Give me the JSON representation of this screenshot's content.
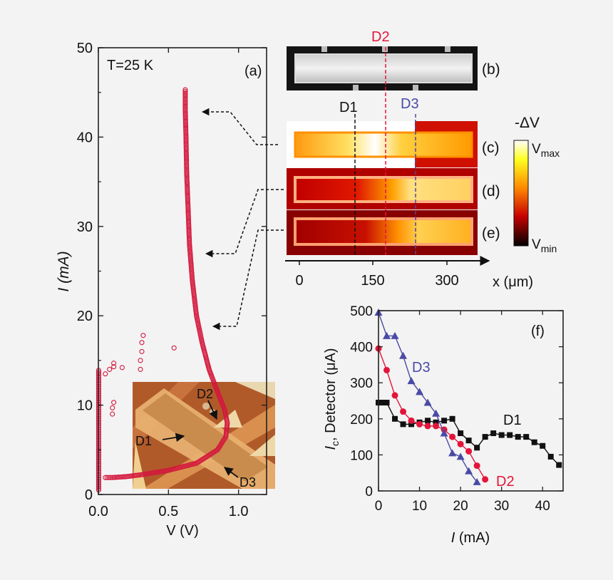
{
  "chart_data": [
    {
      "panel": "(a)",
      "type": "scatter",
      "annotation": "T=25 K",
      "xlabel": "V (V)",
      "ylabel": "I (mA)",
      "xlim": [
        0.0,
        1.2
      ],
      "ylim": [
        0,
        50
      ],
      "xticks": [
        "0.0",
        "0.5",
        "1.0"
      ],
      "yticks": [
        "0",
        "10",
        "20",
        "30",
        "40",
        "50"
      ],
      "inset_labels": [
        "D1",
        "D2",
        "D3"
      ],
      "series": [
        {
          "marker": "open-circle",
          "color": "#d4183d",
          "curve": [
            [
              0.62,
              45.3
            ],
            [
              0.62,
              43
            ],
            [
              0.625,
              40
            ],
            [
              0.63,
              36
            ],
            [
              0.64,
              32
            ],
            [
              0.65,
              28
            ],
            [
              0.67,
              24
            ],
            [
              0.7,
              20
            ],
            [
              0.74,
              17
            ],
            [
              0.79,
              14
            ],
            [
              0.85,
              11.5
            ],
            [
              0.9,
              9.5
            ],
            [
              0.92,
              8
            ],
            [
              0.91,
              6.5
            ],
            [
              0.85,
              5
            ],
            [
              0.7,
              3.5
            ],
            [
              0.5,
              2.7
            ],
            [
              0.3,
              2.2
            ],
            [
              0.2,
              2.0
            ],
            [
              0.1,
              1.9
            ],
            [
              0.05,
              1.9
            ]
          ],
          "vertical_axis_points": [
            0.002,
            0.5,
            14
          ],
          "stray": [
            [
              0.05,
              13.5
            ],
            [
              0.08,
              14.0
            ],
            [
              0.11,
              14.3
            ],
            [
              0.11,
              14.7
            ],
            [
              0.17,
              14.2
            ],
            [
              0.3,
              14.0
            ],
            [
              0.3,
              15.0
            ],
            [
              0.31,
              16.0
            ],
            [
              0.31,
              17.0
            ],
            [
              0.32,
              17.8
            ],
            [
              0.54,
              16.4
            ],
            [
              0.1,
              9.7
            ],
            [
              0.1,
              9.0
            ],
            [
              0.11,
              10.3
            ]
          ]
        }
      ]
    },
    {
      "panel": "(f)",
      "type": "line",
      "xlabel": "I (mA)",
      "ylabel": "Ic, Detector (μA)",
      "xlim": [
        0,
        45
      ],
      "ylim": [
        0,
        500
      ],
      "xticks": [
        "0",
        "10",
        "20",
        "30",
        "40"
      ],
      "yticks": [
        "0",
        "100",
        "200",
        "300",
        "400",
        "500"
      ],
      "series": [
        {
          "name": "D1",
          "color": "#111111",
          "marker": "square",
          "points": [
            [
              0,
              245
            ],
            [
              1,
              245
            ],
            [
              2,
              245
            ],
            [
              4,
              200
            ],
            [
              6,
              185
            ],
            [
              8,
              185
            ],
            [
              10,
              190
            ],
            [
              12,
              195
            ],
            [
              14,
              190
            ],
            [
              16,
              195
            ],
            [
              18,
              200
            ],
            [
              20,
              160
            ],
            [
              22,
              140
            ],
            [
              24,
              120
            ],
            [
              26,
              150
            ],
            [
              28,
              160
            ],
            [
              30,
              155
            ],
            [
              32,
              155
            ],
            [
              34,
              150
            ],
            [
              36,
              150
            ],
            [
              38,
              135
            ],
            [
              40,
              125
            ],
            [
              42,
              95
            ],
            [
              44,
              72
            ]
          ]
        },
        {
          "name": "D2",
          "color": "#e3153a",
          "marker": "circle",
          "points": [
            [
              0,
              395
            ],
            [
              2,
              335
            ],
            [
              4,
              265
            ],
            [
              6,
              220
            ],
            [
              8,
              195
            ],
            [
              10,
              185
            ],
            [
              12,
              180
            ],
            [
              14,
              180
            ],
            [
              16,
              170
            ],
            [
              18,
              150
            ],
            [
              20,
              130
            ],
            [
              22,
              110
            ],
            [
              24,
              70
            ],
            [
              26,
              32
            ]
          ]
        },
        {
          "name": "D3",
          "color": "#4a4aa6",
          "marker": "triangle",
          "points": [
            [
              0,
              495
            ],
            [
              2,
              430
            ],
            [
              4,
              430
            ],
            [
              6,
              375
            ],
            [
              8,
              305
            ],
            [
              10,
              275
            ],
            [
              12,
              245
            ],
            [
              14,
              215
            ],
            [
              16,
              160
            ],
            [
              18,
              105
            ],
            [
              20,
              95
            ],
            [
              22,
              55
            ],
            [
              24,
              25
            ]
          ]
        }
      ]
    },
    {
      "panel": "x-axis of (b)-(e)",
      "type": "axis",
      "xlabel": "x (μm)",
      "xticks": [
        "0",
        "150",
        "300"
      ]
    }
  ],
  "images": {
    "b": {
      "label": "(b)",
      "lines": [
        "D1",
        "D2",
        "D3"
      ]
    },
    "c": {
      "label": "(c)"
    },
    "d": {
      "label": "(d)"
    },
    "e": {
      "label": "(e)"
    }
  },
  "colorbar": {
    "title": "-ΔV",
    "max_label": "V",
    "max_sub": "max",
    "min_label": "V",
    "min_sub": "min",
    "stops": [
      "#ffffff",
      "#ffff00",
      "#ff8a00",
      "#d00000",
      "#000000"
    ]
  }
}
